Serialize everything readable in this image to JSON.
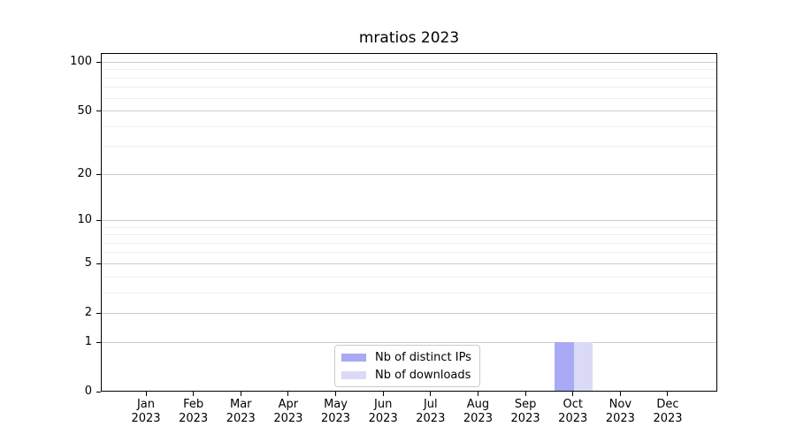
{
  "chart_data": {
    "type": "bar",
    "title": "mratios 2023",
    "categories": [
      "Jan 2023",
      "Feb 2023",
      "Mar 2023",
      "Apr 2023",
      "May 2023",
      "Jun 2023",
      "Jul 2023",
      "Aug 2023",
      "Sep 2023",
      "Oct 2023",
      "Nov 2023",
      "Dec 2023"
    ],
    "series": [
      {
        "name": "Nb of distinct IPs",
        "color": "#a9a9f5",
        "values": [
          0,
          0,
          0,
          0,
          0,
          0,
          0,
          0,
          0,
          1,
          0,
          0
        ]
      },
      {
        "name": "Nb of downloads",
        "color": "#dadaf7",
        "values": [
          0,
          0,
          0,
          0,
          0,
          0,
          0,
          0,
          0,
          1,
          0,
          0
        ]
      }
    ],
    "yscale": "log1p",
    "yticks": [
      0,
      1,
      2,
      5,
      10,
      20,
      50,
      100
    ],
    "ytick_labels": [
      "0",
      "1",
      "2",
      "5",
      "10",
      "20",
      "50",
      "100"
    ],
    "ylim": [
      0,
      114
    ],
    "xlabel": "",
    "ylabel": "",
    "grid": {
      "horizontal": true,
      "show_minor": true
    },
    "legend_position": "bottom-center-inside"
  },
  "colors": {
    "major_grid": "#cccccc",
    "minor_grid": "#eeeeee",
    "axis": "#000000",
    "legend_border": "#cccccc"
  }
}
